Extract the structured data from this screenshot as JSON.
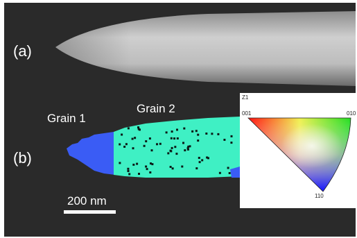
{
  "panels": {
    "a_label": "(a)",
    "b_label": "(b)"
  },
  "grains": {
    "grain1_label": "Grain 1",
    "grain2_label": "Grain 2",
    "grain1_color": "#3a5cf5",
    "grain2_color": "#3ff0c4"
  },
  "scale_bar": {
    "label": "200 nm"
  },
  "ipf_key": {
    "title": "Z1",
    "corner_001": "001",
    "corner_010": "010",
    "corner_110": "110"
  },
  "colors": {
    "background": "#2a2a2a",
    "tip": "#c8c8c8"
  }
}
